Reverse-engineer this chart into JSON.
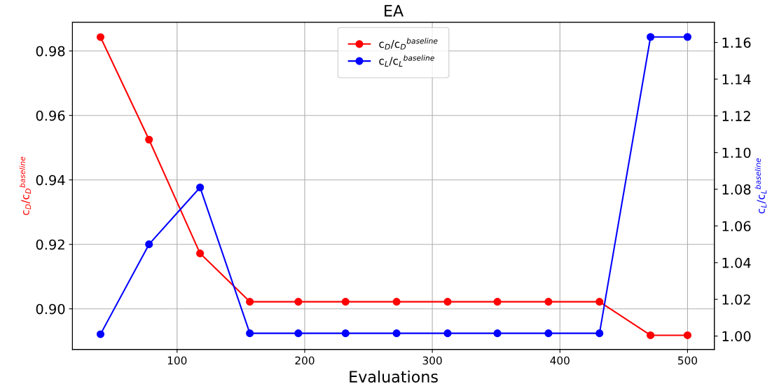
{
  "chart_data": {
    "type": "line",
    "title": "EA",
    "xlabel": "Evaluations",
    "ylabel": "c$_{D}$/c$_{D}$$^{baseline}$",
    "y2label": "c$_{L}$/c$_{L}$$^{baseline}$",
    "x": [
      40,
      78,
      118,
      157,
      195,
      232,
      272,
      312,
      351,
      391,
      431,
      471,
      500
    ],
    "series": [
      {
        "name": "c$_{D}$/c$_{D}$$^{baseline}$",
        "color": "#ff0000",
        "values": [
          0.9843,
          0.9525,
          0.9172,
          0.9022,
          0.9022,
          0.9022,
          0.9022,
          0.9022,
          0.9022,
          0.9022,
          0.9022,
          0.8918,
          0.8918
        ]
      },
      {
        "name": "c$_{L}$/c$_{L}$$^{baseline}$",
        "color": "#0000ff",
        "axis": "y2",
        "values": [
          1.001,
          1.05,
          1.081,
          1.0015,
          1.0015,
          1.0015,
          1.0015,
          1.0015,
          1.0015,
          1.0015,
          1.0015,
          1.163,
          1.163
        ]
      }
    ],
    "xlim": [
      18,
      521
    ],
    "xticks": [
      100,
      200,
      300,
      400,
      500
    ],
    "ylim": [
      0.8874,
      0.9889
    ],
    "yticks": [
      {
        "value": 0.9,
        "label": "0.90"
      },
      0.92,
      0.94,
      0.96,
      0.98
    ],
    "y2lim": [
      0.9927,
      1.171
    ],
    "y2ticks": [
      {
        "value": 1,
        "label": "1.00"
      },
      1.02,
      1.04,
      1.06,
      1.08,
      {
        "value": 1.1,
        "label": "1.10"
      },
      1.12,
      1.14,
      1.16
    ],
    "grid": true,
    "legend": "top",
    "marker": "circle",
    "line_style": "solid"
  }
}
